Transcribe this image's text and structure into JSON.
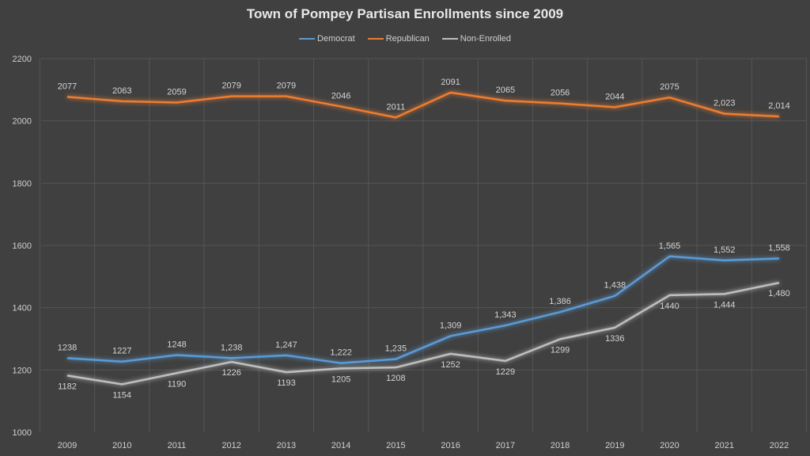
{
  "chart_data": {
    "type": "line",
    "title": "Town of Pompey Partisan Enrollments since 2009",
    "xlabel": "",
    "ylabel": "",
    "x": [
      "2009",
      "2010",
      "2011",
      "2012",
      "2013",
      "2014",
      "2015",
      "2016",
      "2017",
      "2018",
      "2019",
      "2020",
      "2021",
      "2022"
    ],
    "ylim": [
      1000,
      2200
    ],
    "yticks": [
      "1000",
      "1200",
      "1400",
      "1600",
      "1800",
      "2000",
      "2200"
    ],
    "ytick_values": [
      1000,
      1200,
      1400,
      1600,
      1800,
      2000,
      2200
    ],
    "grid": true,
    "legend_position": "top-center",
    "series": [
      {
        "name": "Democrat",
        "color": "#5b9bd5",
        "values": [
          1238,
          1227,
          1248,
          1238,
          1247,
          1222,
          1235,
          1309,
          1343,
          1386,
          1438,
          1565,
          1552,
          1558
        ],
        "labels": [
          "1238",
          "1227",
          "1248",
          "1,238",
          "1,247",
          "1,222",
          "1,235",
          "1,309",
          "1,343",
          "1,386",
          "1,438",
          "1,565",
          "1,552",
          "1,558"
        ],
        "label_position": "above"
      },
      {
        "name": "Republican",
        "color": "#ed7d31",
        "values": [
          2077,
          2063,
          2059,
          2079,
          2079,
          2046,
          2011,
          2091,
          2065,
          2056,
          2044,
          2075,
          2023,
          2014
        ],
        "labels": [
          "2077",
          "2063",
          "2059",
          "2079",
          "2079",
          "2046",
          "2011",
          "2091",
          "2065",
          "2056",
          "2044",
          "2075",
          "2,023",
          "2,014"
        ],
        "label_position": "above"
      },
      {
        "name": "Non-Enrolled",
        "color": "#bfbfbf",
        "values": [
          1182,
          1154,
          1190,
          1226,
          1193,
          1205,
          1208,
          1252,
          1229,
          1299,
          1336,
          1440,
          1444,
          1480
        ],
        "labels": [
          "1182",
          "1154",
          "1190",
          "1226",
          "1193",
          "1205",
          "1208",
          "1252",
          "1229",
          "1299",
          "1336",
          "1440",
          "1,444",
          "1,480"
        ],
        "label_position": "below"
      }
    ]
  },
  "colors": {
    "background": "#404040",
    "gridline": "#555555",
    "text": "#d4d4d4"
  }
}
